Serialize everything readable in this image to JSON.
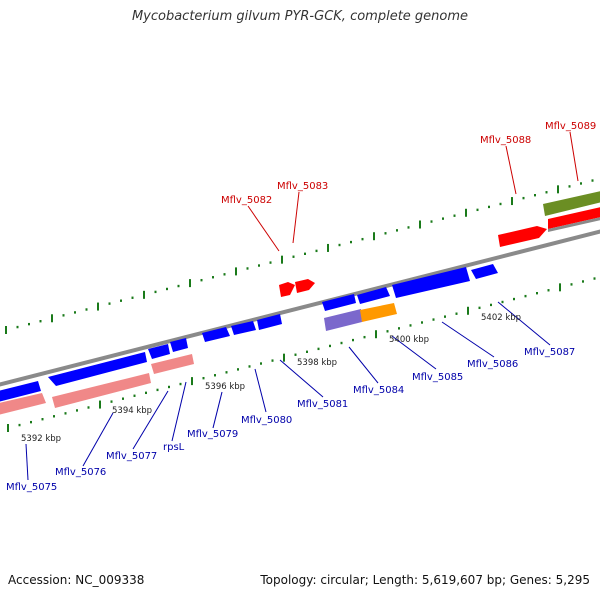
{
  "title": "Mycobacterium gilvum PYR-GCK, complete genome",
  "footer": {
    "accession": "Accession: NC_009338",
    "summary": "Topology: circular; Length: 5,619,607 bp; Genes: 5,295"
  },
  "colors": {
    "backbone": "#8a8a8a",
    "cds_forward": "#ff0000",
    "cds_reverse": "#0000ff",
    "gene_reverse": "#f08888",
    "gene_forward": "#6b8e23",
    "misc_purple": "#7b68cc",
    "misc_orange": "#ff9900",
    "tick": "#1a7a1a",
    "label_forward": "#cc0000",
    "label_reverse": "#0000aa"
  },
  "scale_labels": [
    "5392 kbp",
    "5394 kbp",
    "5396 kbp",
    "5398 kbp",
    "5400 kbp",
    "5402 kbp"
  ],
  "genes_forward": [
    "Mflv_5082",
    "Mflv_5083",
    "Mflv_5088",
    "Mflv_5089"
  ],
  "genes_reverse": [
    "Mflv_5075",
    "Mflv_5076",
    "Mflv_5077",
    "rpsL",
    "Mflv_5079",
    "Mflv_5080",
    "Mflv_5081",
    "Mflv_5084",
    "Mflv_5085",
    "Mflv_5086",
    "Mflv_5087"
  ]
}
